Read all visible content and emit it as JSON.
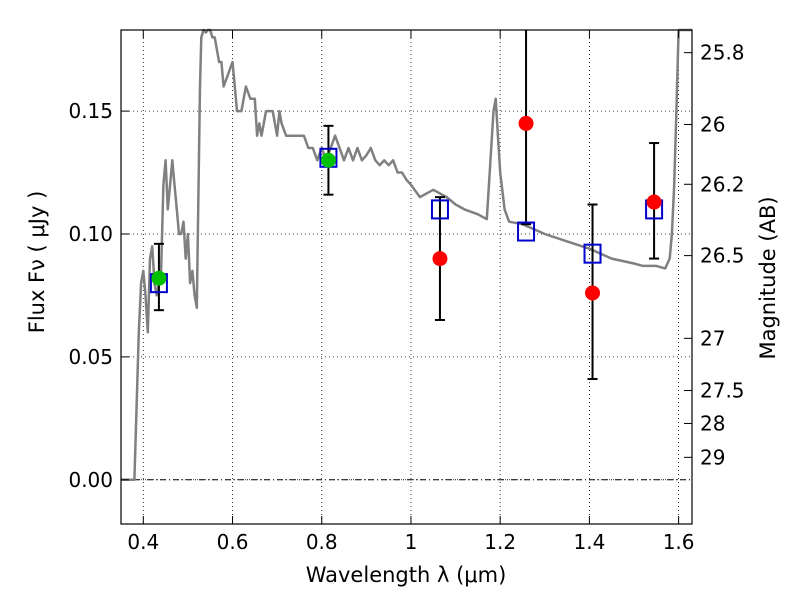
{
  "chart_data": {
    "type": "scatter",
    "title": "",
    "xlabel": "Wavelength  λ (μm)",
    "ylabel": "Flux  Fν  ( μJy )",
    "right_ylabel": "Magnitude (AB)",
    "xlim": [
      0.35,
      1.63
    ],
    "ylim": [
      -0.018,
      0.183
    ],
    "grid": true,
    "x_ticks": [
      0.4,
      0.6,
      0.8,
      1.0,
      1.2,
      1.4,
      1.6
    ],
    "x_tick_labels": [
      "0.4",
      "0.6",
      "0.8",
      "1",
      "1.2",
      "1.4",
      "1.6"
    ],
    "y_ticks": [
      0.0,
      0.05,
      0.1,
      0.15
    ],
    "y_tick_labels": [
      "0.00",
      "0.05",
      "0.10",
      "0.15"
    ],
    "mag_ticks": [
      25.8,
      26,
      26.2,
      26.5,
      27,
      27.5,
      28,
      29
    ],
    "mag_tick_labels": [
      "25.8",
      "26",
      "26.2",
      "26.5",
      "27",
      "27.5",
      "28",
      "29"
    ],
    "zero_line": true,
    "colors": {
      "model": "#808080",
      "green": "#00c000",
      "red": "#ff0000",
      "box": "#0000cc",
      "error": "#000000"
    },
    "model_spectrum": {
      "x": [
        0.35,
        0.37,
        0.38,
        0.385,
        0.39,
        0.395,
        0.4,
        0.405,
        0.41,
        0.415,
        0.42,
        0.425,
        0.43,
        0.435,
        0.44,
        0.445,
        0.45,
        0.455,
        0.46,
        0.465,
        0.47,
        0.475,
        0.48,
        0.485,
        0.49,
        0.495,
        0.5,
        0.505,
        0.51,
        0.515,
        0.52,
        0.523,
        0.527,
        0.53,
        0.535,
        0.54,
        0.545,
        0.55,
        0.555,
        0.56,
        0.565,
        0.57,
        0.575,
        0.58,
        0.59,
        0.6,
        0.605,
        0.61,
        0.62,
        0.63,
        0.64,
        0.65,
        0.655,
        0.66,
        0.665,
        0.67,
        0.675,
        0.68,
        0.69,
        0.7,
        0.705,
        0.71,
        0.72,
        0.73,
        0.74,
        0.75,
        0.76,
        0.77,
        0.78,
        0.79,
        0.8,
        0.81,
        0.82,
        0.83,
        0.84,
        0.85,
        0.86,
        0.87,
        0.88,
        0.89,
        0.9,
        0.91,
        0.92,
        0.93,
        0.94,
        0.95,
        0.96,
        0.97,
        0.98,
        0.99,
        1.0,
        1.02,
        1.05,
        1.08,
        1.1,
        1.12,
        1.15,
        1.17,
        1.185,
        1.19,
        1.195,
        1.2,
        1.21,
        1.22,
        1.25,
        1.3,
        1.35,
        1.4,
        1.45,
        1.5,
        1.52,
        1.55,
        1.57,
        1.58,
        1.585,
        1.59,
        1.595,
        1.6,
        1.63
      ],
      "y": [
        0.0,
        0.0,
        0.0,
        0.03,
        0.06,
        0.08,
        0.085,
        0.075,
        0.06,
        0.09,
        0.095,
        0.08,
        0.075,
        0.08,
        0.085,
        0.12,
        0.13,
        0.11,
        0.12,
        0.13,
        0.12,
        0.11,
        0.1,
        0.1,
        0.105,
        0.09,
        0.1,
        0.08,
        0.085,
        0.075,
        0.07,
        0.11,
        0.16,
        0.18,
        0.185,
        0.182,
        0.185,
        0.183,
        0.18,
        0.18,
        0.175,
        0.17,
        0.17,
        0.16,
        0.165,
        0.17,
        0.16,
        0.15,
        0.15,
        0.16,
        0.155,
        0.155,
        0.14,
        0.145,
        0.14,
        0.145,
        0.15,
        0.15,
        0.15,
        0.14,
        0.15,
        0.145,
        0.14,
        0.14,
        0.14,
        0.14,
        0.14,
        0.135,
        0.135,
        0.13,
        0.135,
        0.13,
        0.135,
        0.14,
        0.135,
        0.13,
        0.135,
        0.13,
        0.135,
        0.13,
        0.132,
        0.135,
        0.13,
        0.128,
        0.13,
        0.128,
        0.13,
        0.125,
        0.125,
        0.122,
        0.12,
        0.115,
        0.118,
        0.115,
        0.112,
        0.11,
        0.108,
        0.106,
        0.15,
        0.155,
        0.14,
        0.125,
        0.11,
        0.105,
        0.104,
        0.1,
        0.097,
        0.094,
        0.09,
        0.088,
        0.087,
        0.087,
        0.086,
        0.09,
        0.1,
        0.12,
        0.15,
        0.183,
        0.183
      ]
    },
    "points": [
      {
        "x": 0.435,
        "y": 0.082,
        "marker": "circle",
        "color": "green",
        "yerr_low": 0.0,
        "yerr_high": 0.0
      },
      {
        "x": 0.815,
        "y": 0.13,
        "marker": "circle",
        "color": "green",
        "yerr_low": 0.0,
        "yerr_high": 0.0
      },
      {
        "x": 1.065,
        "y": 0.09,
        "marker": "circle",
        "color": "red",
        "yerr_low": 0.025,
        "yerr_high": 0.025
      },
      {
        "x": 1.258,
        "y": 0.145,
        "marker": "circle",
        "color": "red",
        "yerr_low": 0.041,
        "yerr_high": 0.045
      },
      {
        "x": 1.407,
        "y": 0.076,
        "marker": "circle",
        "color": "red",
        "yerr_low": 0.035,
        "yerr_high": 0.036
      },
      {
        "x": 1.545,
        "y": 0.113,
        "marker": "circle",
        "color": "red",
        "yerr_low": 0.023,
        "yerr_high": 0.024
      }
    ],
    "errorbars": [
      {
        "x": 0.435,
        "low": 0.069,
        "high": 0.096
      },
      {
        "x": 0.815,
        "low": 0.116,
        "high": 0.144
      }
    ],
    "model_boxes": [
      {
        "x": 0.435,
        "y": 0.08
      },
      {
        "x": 0.815,
        "y": 0.131
      },
      {
        "x": 1.065,
        "y": 0.11
      },
      {
        "x": 1.258,
        "y": 0.101
      },
      {
        "x": 1.407,
        "y": 0.092
      },
      {
        "x": 1.545,
        "y": 0.11
      }
    ]
  }
}
